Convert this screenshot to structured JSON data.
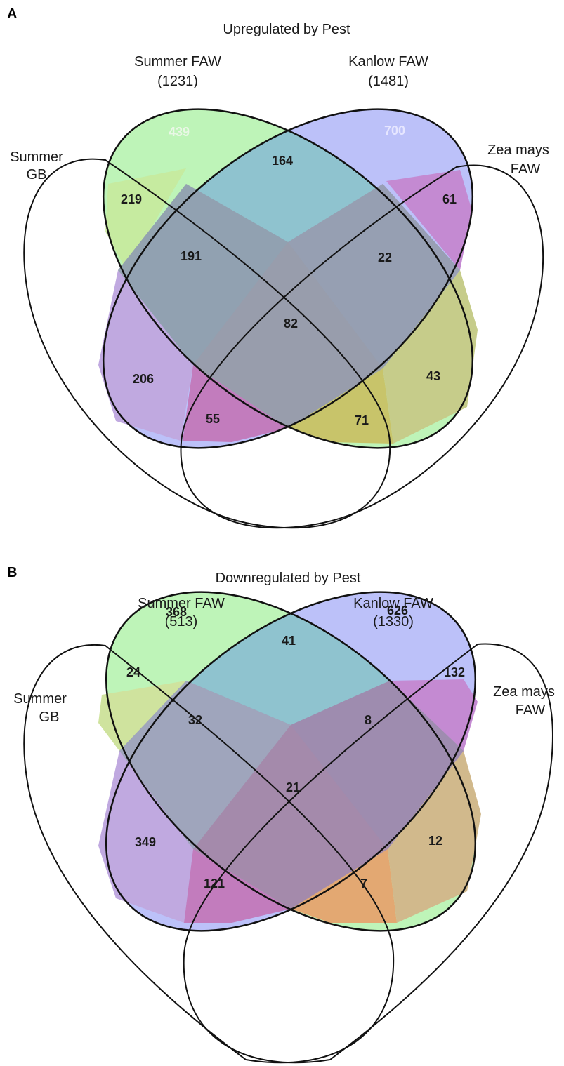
{
  "panels": [
    {
      "letter": "A",
      "title": "Upregulated by Pest",
      "sets": {
        "summer_faw": {
          "name": "Summer FAW",
          "count": "(1231)"
        },
        "kanlow_faw": {
          "name": "Kanlow FAW",
          "count": "(1481)"
        },
        "summer_gb": {
          "name_line1": "Summer",
          "name_line2": "GB"
        },
        "zea_mays_faw": {
          "name_line1": "Zea mays",
          "name_line2": "FAW"
        }
      },
      "regions": {
        "summer_faw_only": "439",
        "kanlow_faw_only": "700",
        "sfaw_kfaw": "164",
        "sgb_sfaw": "219",
        "kfaw_zea": "61",
        "sgb_sfaw_kfaw": "191",
        "sfaw_kfaw_zea": "22",
        "all_four": "82",
        "sgb_kfaw": "206",
        "sfaw_zea": "43",
        "sgb_kfaw_zea": "55",
        "sgb_sfaw_zea": "71"
      }
    },
    {
      "letter": "B",
      "title": "Downregulated by Pest",
      "sets": {
        "summer_faw": {
          "name": "Summer FAW",
          "count": "(513)"
        },
        "kanlow_faw": {
          "name": "Kanlow FAW",
          "count": "(1330)"
        },
        "summer_gb": {
          "name_line1": "Summer",
          "name_line2": "GB"
        },
        "zea_mays_faw": {
          "name_line1": "Zea mays",
          "name_line2": "FAW"
        }
      },
      "regions": {
        "summer_faw_only": "368",
        "kanlow_faw_only": "626",
        "sfaw_kfaw": "41",
        "sgb_sfaw": "24",
        "kfaw_zea": "132",
        "sgb_sfaw_kfaw": "32",
        "sfaw_kfaw_zea": "8",
        "all_four": "21",
        "sgb_kfaw": "349",
        "sfaw_zea": "12",
        "sgb_kfaw_zea": "121",
        "sgb_sfaw_zea": "7"
      }
    }
  ]
}
